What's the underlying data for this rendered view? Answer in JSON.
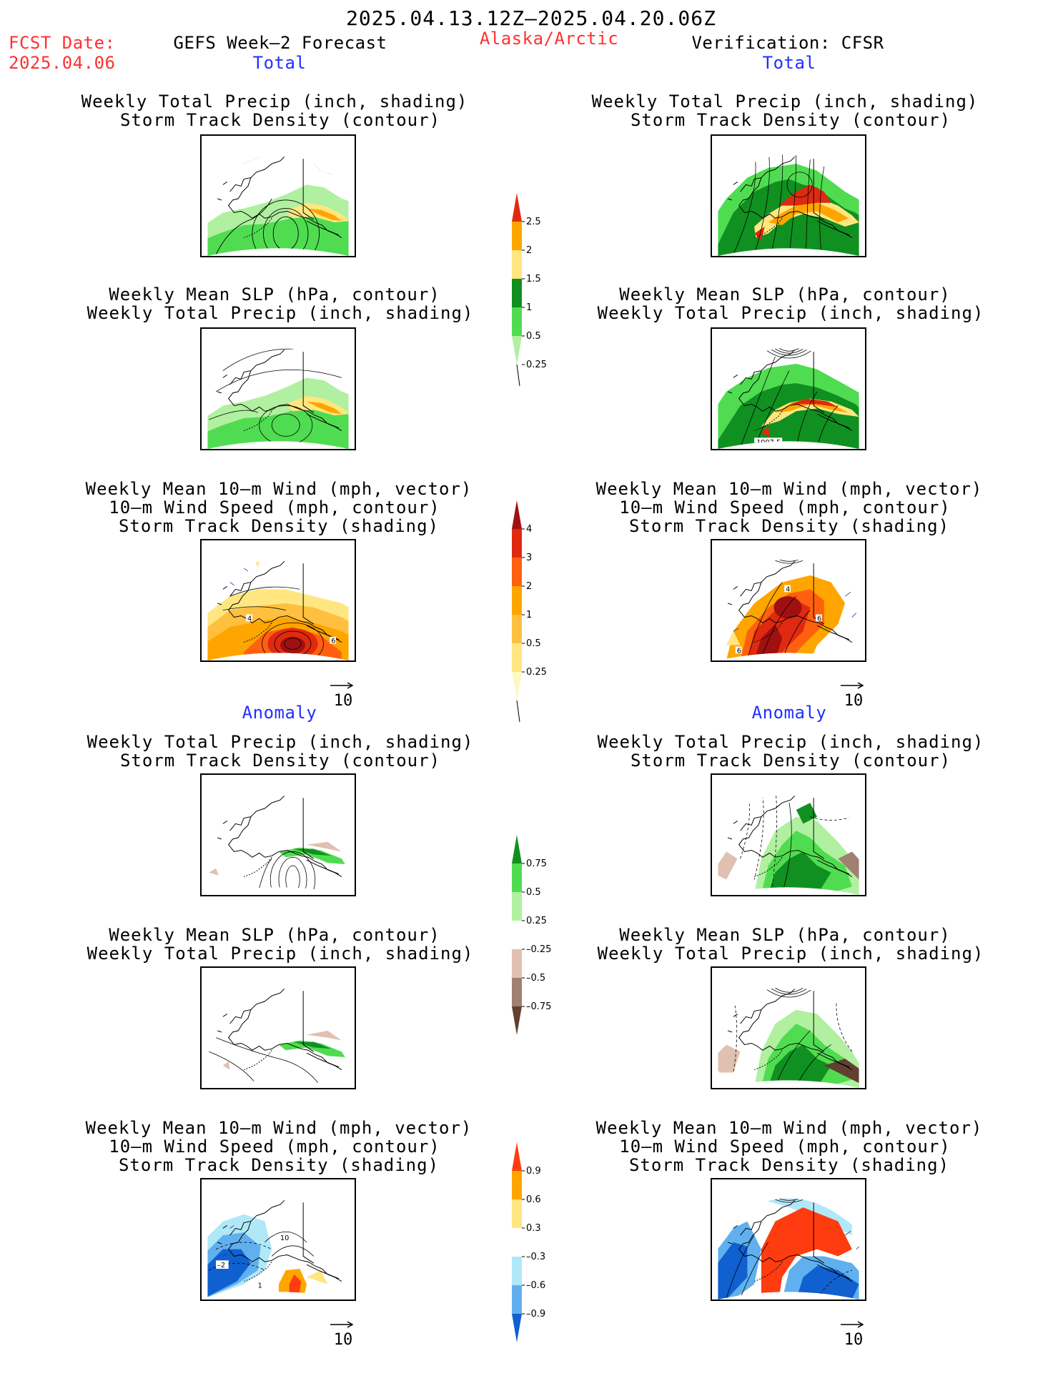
{
  "header": {
    "period": "2025.04.13.12Z–2025.04.20.06Z",
    "fcst_label": "FCST Date:",
    "fcst_date": "2025.04.06",
    "model": "GEFS Week–2 Forecast",
    "region": "Alaska/Arctic",
    "verification": "Verification: CFSR"
  },
  "sections": {
    "total": "Total",
    "anomaly": "Anomaly"
  },
  "titles": {
    "precip_storm": [
      "Weekly Total Precip (inch, shading)",
      "Storm Track Density (contour)"
    ],
    "slp_precip": [
      "Weekly Mean SLP (hPa, contour)",
      "Weekly Total Precip (inch, shading)"
    ],
    "wind_storm": [
      "Weekly Mean 10–m Wind (mph, vector)",
      "10–m Wind Speed (mph, contour)",
      "Storm Track Density (shading)"
    ]
  },
  "vector_ref": "10",
  "panel_labels": {
    "slp_right_total": "1007.5",
    "wind_left_4": "4",
    "wind_left_6": "6",
    "wind_right_4": "4",
    "wind_right_6a": "6",
    "wind_right_6b": "6",
    "anom_wind_neg2": "–2",
    "anom_wind_1": "1",
    "anom_wind_10": "10"
  },
  "colorbars": {
    "precip_total": {
      "labels": [
        "2.5",
        "2",
        "1.5",
        "1",
        "0.5",
        "0.25"
      ],
      "colors": [
        "#e02a10",
        "#ffa500",
        "#ffe680",
        "#109020",
        "#50dc50",
        "#b0f0a0"
      ]
    },
    "storm_total": {
      "labels": [
        "4",
        "3",
        "2",
        "1",
        "0.5",
        "0.25"
      ],
      "colors": [
        "#a01010",
        "#e02a10",
        "#ff6010",
        "#ffa500",
        "#ffc040",
        "#ffe680",
        "#fff8c0"
      ]
    },
    "precip_anomaly": {
      "labels": [
        "0.75",
        "0.5",
        "0.25",
        "–0.25",
        "–0.5",
        "–0.75"
      ],
      "colors": [
        "#109020",
        "#50dc50",
        "#b0f0a0",
        "#ffffff",
        "#e0c0b0",
        "#a08070",
        "#604030"
      ]
    },
    "storm_anomaly": {
      "labels": [
        "0.9",
        "0.6",
        "0.3",
        "–0.3",
        "–0.6",
        "–0.9"
      ],
      "colors": [
        "#ff3c10",
        "#ffa500",
        "#ffe680",
        "#ffffff",
        "#b0e8f8",
        "#60b0f0",
        "#1060d0"
      ]
    }
  },
  "colors": {
    "red_text": "#ff3030",
    "blue_text": "#2030ff"
  }
}
